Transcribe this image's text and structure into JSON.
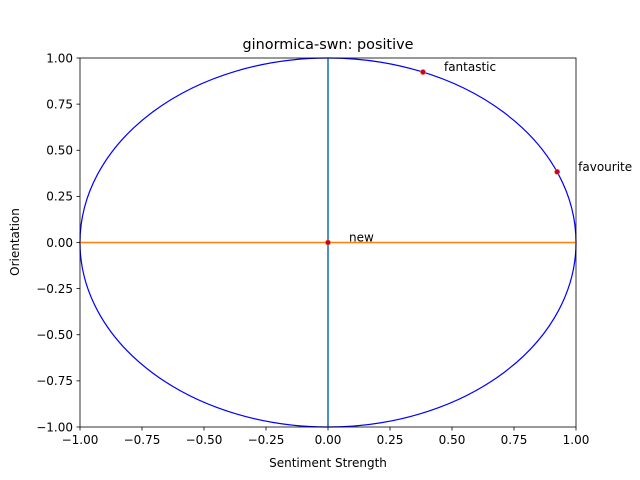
{
  "chart_data": {
    "type": "scatter",
    "title": "ginormica-swn: positive",
    "xlabel": "Sentiment Strength",
    "ylabel": "Orientation",
    "xlim": [
      -1.0,
      1.0
    ],
    "ylim": [
      -1.0,
      1.0
    ],
    "xticks": [
      "−1.00",
      "−0.75",
      "−0.50",
      "−0.25",
      "0.00",
      "0.25",
      "0.50",
      "0.75",
      "1.00"
    ],
    "yticks": [
      "−1.00",
      "−0.75",
      "−0.50",
      "−0.25",
      "0.00",
      "0.25",
      "0.50",
      "0.75",
      "1.00"
    ],
    "xtick_values": [
      -1.0,
      -0.75,
      -0.5,
      -0.25,
      0.0,
      0.25,
      0.5,
      0.75,
      1.0
    ],
    "ytick_values": [
      -1.0,
      -0.75,
      -0.5,
      -0.25,
      0.0,
      0.25,
      0.5,
      0.75,
      1.0
    ],
    "grid": false,
    "unit_circle": {
      "radius": 1.0,
      "color": "#0000ff"
    },
    "vertical_line": {
      "x": 0.0,
      "color": "#1f77b4"
    },
    "horizontal_line": {
      "y": 0.0,
      "color": "#ff7f0e"
    },
    "points": [
      {
        "label": "fantastic",
        "x": 0.383,
        "y": 0.924
      },
      {
        "label": "favourite",
        "x": 0.924,
        "y": 0.383
      },
      {
        "label": "new",
        "x": 0.0,
        "y": 0.0
      }
    ],
    "point_color": "#c0003c"
  }
}
